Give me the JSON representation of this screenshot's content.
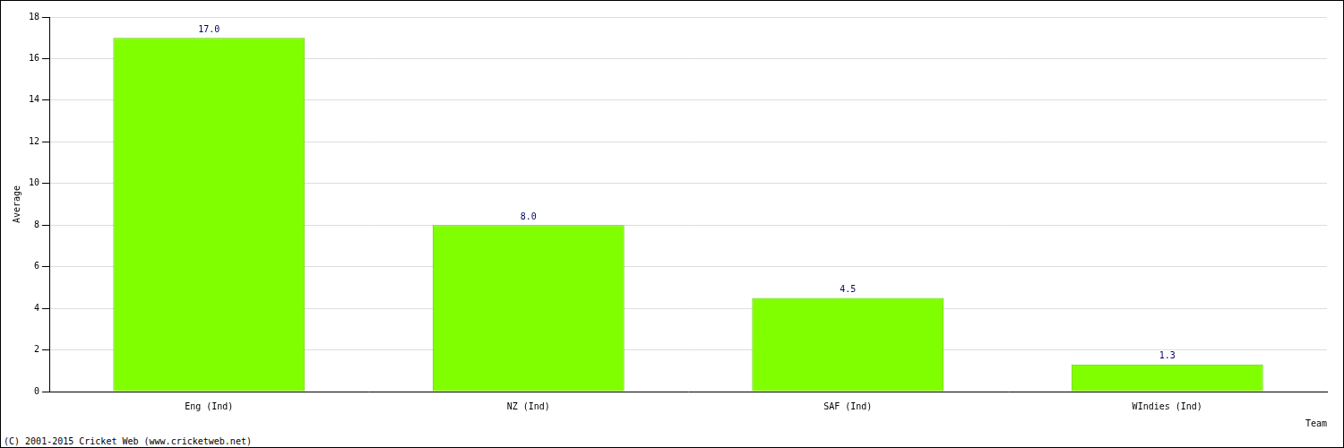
{
  "chart_data": {
    "type": "bar",
    "categories": [
      "Eng (Ind)",
      "NZ (Ind)",
      "SAF (Ind)",
      "WIndies (Ind)"
    ],
    "values": [
      17.0,
      8.0,
      4.5,
      1.3
    ],
    "value_labels": [
      "17.0",
      "8.0",
      "4.5",
      "1.3"
    ],
    "data_labels": true,
    "color": "#80ff00",
    "x_label": "Team",
    "y_label": "Average",
    "ylim": [
      0,
      18
    ],
    "yticks": [
      0,
      2,
      4,
      6,
      8,
      10,
      12,
      14,
      16,
      18
    ],
    "grid": true,
    "annotations": [
      "(C) 2001-2015 Cricket Web (www.cricketweb.net)"
    ]
  }
}
